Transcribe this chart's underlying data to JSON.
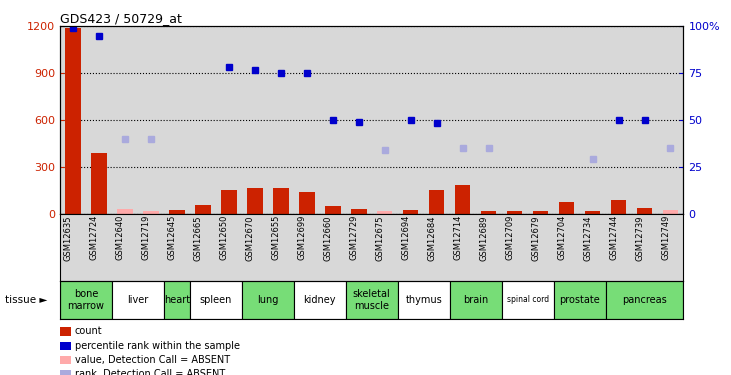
{
  "title": "GDS423 / 50729_at",
  "gsm_ids": [
    "GSM12635",
    "GSM12724",
    "GSM12640",
    "GSM12719",
    "GSM12645",
    "GSM12665",
    "GSM12650",
    "GSM12670",
    "GSM12655",
    "GSM12699",
    "GSM12660",
    "GSM12729",
    "GSM12675",
    "GSM12694",
    "GSM12684",
    "GSM12714",
    "GSM12689",
    "GSM12709",
    "GSM12679",
    "GSM12704",
    "GSM12734",
    "GSM12744",
    "GSM12739",
    "GSM12749"
  ],
  "tissues": [
    {
      "name": "bone\nmarrow",
      "start": 0,
      "end": 2,
      "green": true
    },
    {
      "name": "liver",
      "start": 2,
      "end": 4,
      "green": false
    },
    {
      "name": "heart",
      "start": 4,
      "end": 5,
      "green": true
    },
    {
      "name": "spleen",
      "start": 5,
      "end": 7,
      "green": false
    },
    {
      "name": "lung",
      "start": 7,
      "end": 9,
      "green": true
    },
    {
      "name": "kidney",
      "start": 9,
      "end": 11,
      "green": false
    },
    {
      "name": "skeletal\nmuscle",
      "start": 11,
      "end": 13,
      "green": true
    },
    {
      "name": "thymus",
      "start": 13,
      "end": 15,
      "green": false
    },
    {
      "name": "brain",
      "start": 15,
      "end": 17,
      "green": true
    },
    {
      "name": "spinal cord",
      "start": 17,
      "end": 19,
      "green": false
    },
    {
      "name": "prostate",
      "start": 19,
      "end": 21,
      "green": true
    },
    {
      "name": "pancreas",
      "start": 21,
      "end": 24,
      "green": true
    }
  ],
  "bar_values": [
    1190,
    390,
    30,
    20,
    25,
    55,
    155,
    165,
    165,
    140,
    50,
    30,
    20,
    25,
    155,
    185,
    15,
    20,
    20,
    75,
    20,
    90,
    35,
    25
  ],
  "bar_absent": [
    false,
    false,
    true,
    true,
    false,
    false,
    false,
    false,
    false,
    false,
    false,
    false,
    true,
    false,
    false,
    false,
    false,
    false,
    false,
    false,
    false,
    false,
    false,
    true
  ],
  "rank_values": [
    1190,
    1140,
    null,
    null,
    null,
    null,
    940,
    920,
    900,
    900,
    600,
    590,
    null,
    600,
    580,
    null,
    null,
    null,
    null,
    null,
    null,
    600,
    600,
    null
  ],
  "rank_absent_values": [
    null,
    null,
    480,
    480,
    null,
    null,
    null,
    null,
    null,
    null,
    null,
    null,
    410,
    null,
    null,
    420,
    420,
    null,
    null,
    null,
    350,
    null,
    null,
    420
  ],
  "ylim": [
    0,
    1200
  ],
  "yticks": [
    0,
    300,
    600,
    900,
    1200
  ],
  "y2ticks_labels": [
    "0",
    "25",
    "50",
    "75",
    "100%"
  ],
  "y2ticks_values": [
    0,
    300,
    600,
    900,
    1200
  ],
  "bar_color": "#cc2200",
  "bar_absent_color": "#ffaaaa",
  "rank_color": "#0000cc",
  "rank_absent_color": "#aaaadd",
  "background_main": "#d8d8d8",
  "background_tissue_green": "#77dd77",
  "background_tissue_white": "#ffffff",
  "legend_items": [
    {
      "label": "count",
      "color": "#cc2200"
    },
    {
      "label": "percentile rank within the sample",
      "color": "#0000cc"
    },
    {
      "label": "value, Detection Call = ABSENT",
      "color": "#ffaaaa"
    },
    {
      "label": "rank, Detection Call = ABSENT",
      "color": "#aaaadd"
    }
  ]
}
